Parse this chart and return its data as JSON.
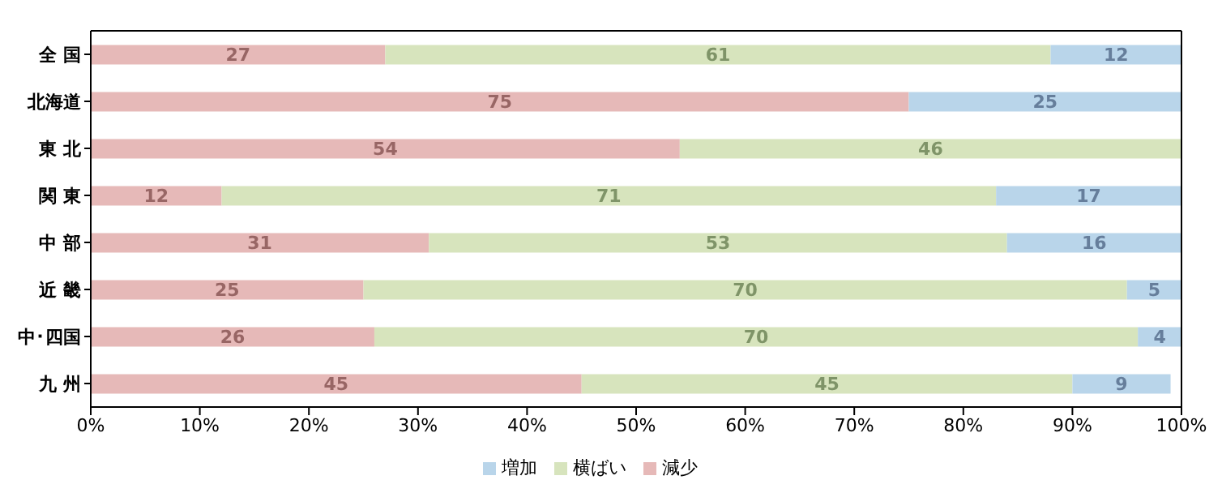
{
  "chart_data": {
    "type": "bar",
    "orientation": "horizontal",
    "stacked": true,
    "categories": [
      "全 国",
      "北海道",
      "東 北",
      "関 東",
      "中 部",
      "近 畿",
      "中･四国",
      "九 州"
    ],
    "series": [
      {
        "name": "減少",
        "color": "#e6b9b8",
        "values": [
          27,
          75,
          54,
          12,
          31,
          25,
          26,
          45
        ]
      },
      {
        "name": "横ばい",
        "color": "#d7e4bd",
        "values": [
          61,
          null,
          46,
          71,
          53,
          70,
          70,
          45
        ]
      },
      {
        "name": "増加",
        "color": "#b9d5ea",
        "values": [
          12,
          25,
          null,
          17,
          16,
          5,
          4,
          9
        ]
      }
    ],
    "xlim": [
      0,
      100
    ],
    "xticks": [
      {
        "value": 0,
        "label": "0%"
      },
      {
        "value": 10,
        "label": "10%"
      },
      {
        "value": 20,
        "label": "20%"
      },
      {
        "value": 30,
        "label": "30%"
      },
      {
        "value": 40,
        "label": "40%"
      },
      {
        "value": 50,
        "label": "50%"
      },
      {
        "value": 60,
        "label": "60%"
      },
      {
        "value": 70,
        "label": "70%"
      },
      {
        "value": 80,
        "label": "80%"
      },
      {
        "value": 90,
        "label": "90%"
      },
      {
        "value": 100,
        "label": "100%"
      }
    ],
    "data_labels": true,
    "legend": "bottom",
    "grid": false
  }
}
